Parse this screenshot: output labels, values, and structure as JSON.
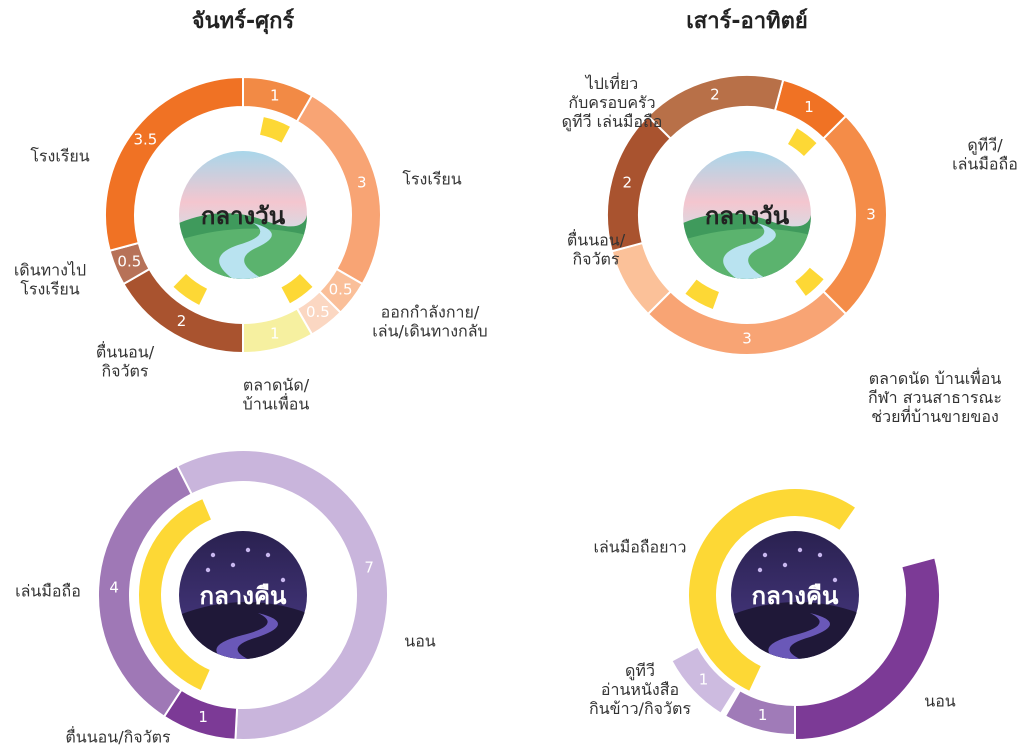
{
  "chart_data": [
    {
      "type": "donut",
      "title": "จันทร์-ศุกร์",
      "center_label": "กลางวัน",
      "categories": [
        null,
        "โรงเรียน",
        "ออกกำลังกาย/\nเล่น/เดินทางกลับ",
        null,
        "ตลาดนัด/\nบ้านเพื่อน",
        "ตื่นนอน/\nกิจวัตร",
        "เดินทางไป\nโรงเรียน",
        "โรงเรียน"
      ],
      "values": [
        1,
        3,
        0.5,
        0.5,
        1,
        2,
        0.5,
        3.5
      ],
      "colors": [
        "#f28a45",
        "#f8a474",
        "#fabf99",
        "#fbd7c2",
        "#f6f0a0",
        "#a9532f",
        "#b77258",
        "#f07224"
      ]
    },
    {
      "type": "donut",
      "title": "เสาร์-อาทิตย์",
      "center_label": "กลางวัน",
      "categories": [
        null,
        "ดูทีวี/\nเล่นมือถือ",
        "ตลาดนัด บ้านเพื่อน\nกีฬา สวนสาธารณะ\nช่วยที่บ้านขายของ",
        null,
        "ตื่นนอน/\nกิจวัตร",
        "ไปเที่ยว\nกับครอบครัว\nดูทีวี เล่นมือถือ"
      ],
      "values": [
        1,
        3,
        3,
        1,
        2,
        2
      ],
      "value_labels": [
        "1",
        "3",
        "3",
        null,
        "2",
        "2"
      ],
      "colors": [
        "#f07224",
        "#f48c48",
        "#f8a474",
        "#fbc199",
        "#a9532f",
        "#b87048"
      ]
    },
    {
      "type": "donut",
      "center_label": "กลางคืน",
      "categories": [
        "นอน",
        "ตื่นนอน/กิจวัตร",
        "เล่นมือถือ"
      ],
      "values": [
        7,
        1,
        4
      ],
      "colors": [
        "#c9b5dc",
        "#7c3a96",
        "#9f78b6"
      ]
    },
    {
      "type": "donut",
      "center_label": "กลางคืน",
      "categories": [
        "เล่นมือถือยาว",
        "นอน",
        null,
        "ดูทีวี\nอ่านหนังสือ\nกินข้าว/กิจวัตร"
      ],
      "values": [
        6,
        3.5,
        1,
        1
      ],
      "value_labels": [
        null,
        null,
        "1",
        "1"
      ],
      "colors": [
        "#fdd835",
        "#7c3a96",
        "#a07bb8",
        "#cdbbe0"
      ]
    }
  ]
}
